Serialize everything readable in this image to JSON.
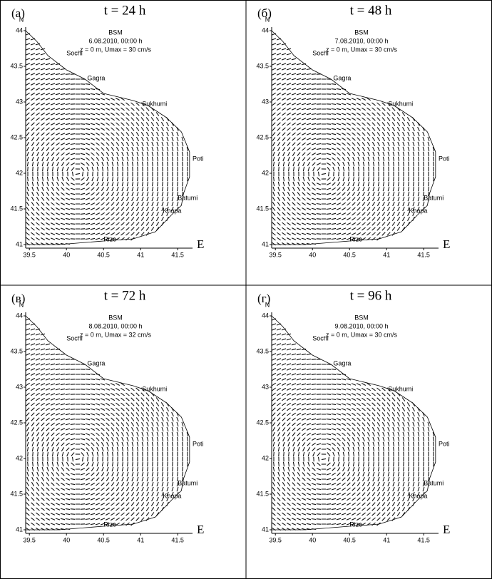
{
  "panels": [
    {
      "label": "(а)",
      "title": "t = 24 h",
      "model": "BSM",
      "date": "6.08.2010, 00:00 h",
      "params": "z = 0 m, Umax = 30 cm/s",
      "cities": [
        "Sochi",
        "Gagra",
        "Sukhumi",
        "Poti",
        "Batumi",
        "Khopa",
        "Rize"
      ]
    },
    {
      "label": "(б)",
      "title": "t = 48 h",
      "model": "BSM",
      "date": "7.08.2010, 00:00 h",
      "params": "z = 0 m, Umax = 30 cm/s",
      "cities": [
        "Sochi",
        "Gagra",
        "Sukhumi",
        "Poti",
        "Batumi",
        "Khopa",
        "Rize"
      ]
    },
    {
      "label": "(в)",
      "title": "t = 72 h",
      "model": "BSM",
      "date": "8.08.2010, 00:00 h",
      "params": "z = 0 m, Umax = 32 cm/s",
      "cities": [
        "Sochi",
        "Gagra",
        "Sukhumi",
        "Poti",
        "Batumi",
        "Khopa",
        "Rize"
      ]
    },
    {
      "label": "(г)",
      "title": "t = 96 h",
      "model": "BSM",
      "date": "9.08.2010, 00:00 h",
      "params": "z = 0 m, Umax = 30 cm/s",
      "cities": [
        "Sochi",
        "Gagra",
        "Sukhumi",
        "Poti",
        "Batumi",
        "Khopa",
        "Rize"
      ]
    }
  ],
  "axes": {
    "x_label": "E",
    "y_label": "N",
    "xlim": [
      39.45,
      41.7
    ],
    "ylim": [
      40.95,
      44.05
    ],
    "xticks": [
      39.5,
      40,
      40.5,
      41,
      41.5
    ],
    "yticks": [
      41,
      41.5,
      42,
      42.5,
      43,
      43.5,
      44
    ]
  }
}
